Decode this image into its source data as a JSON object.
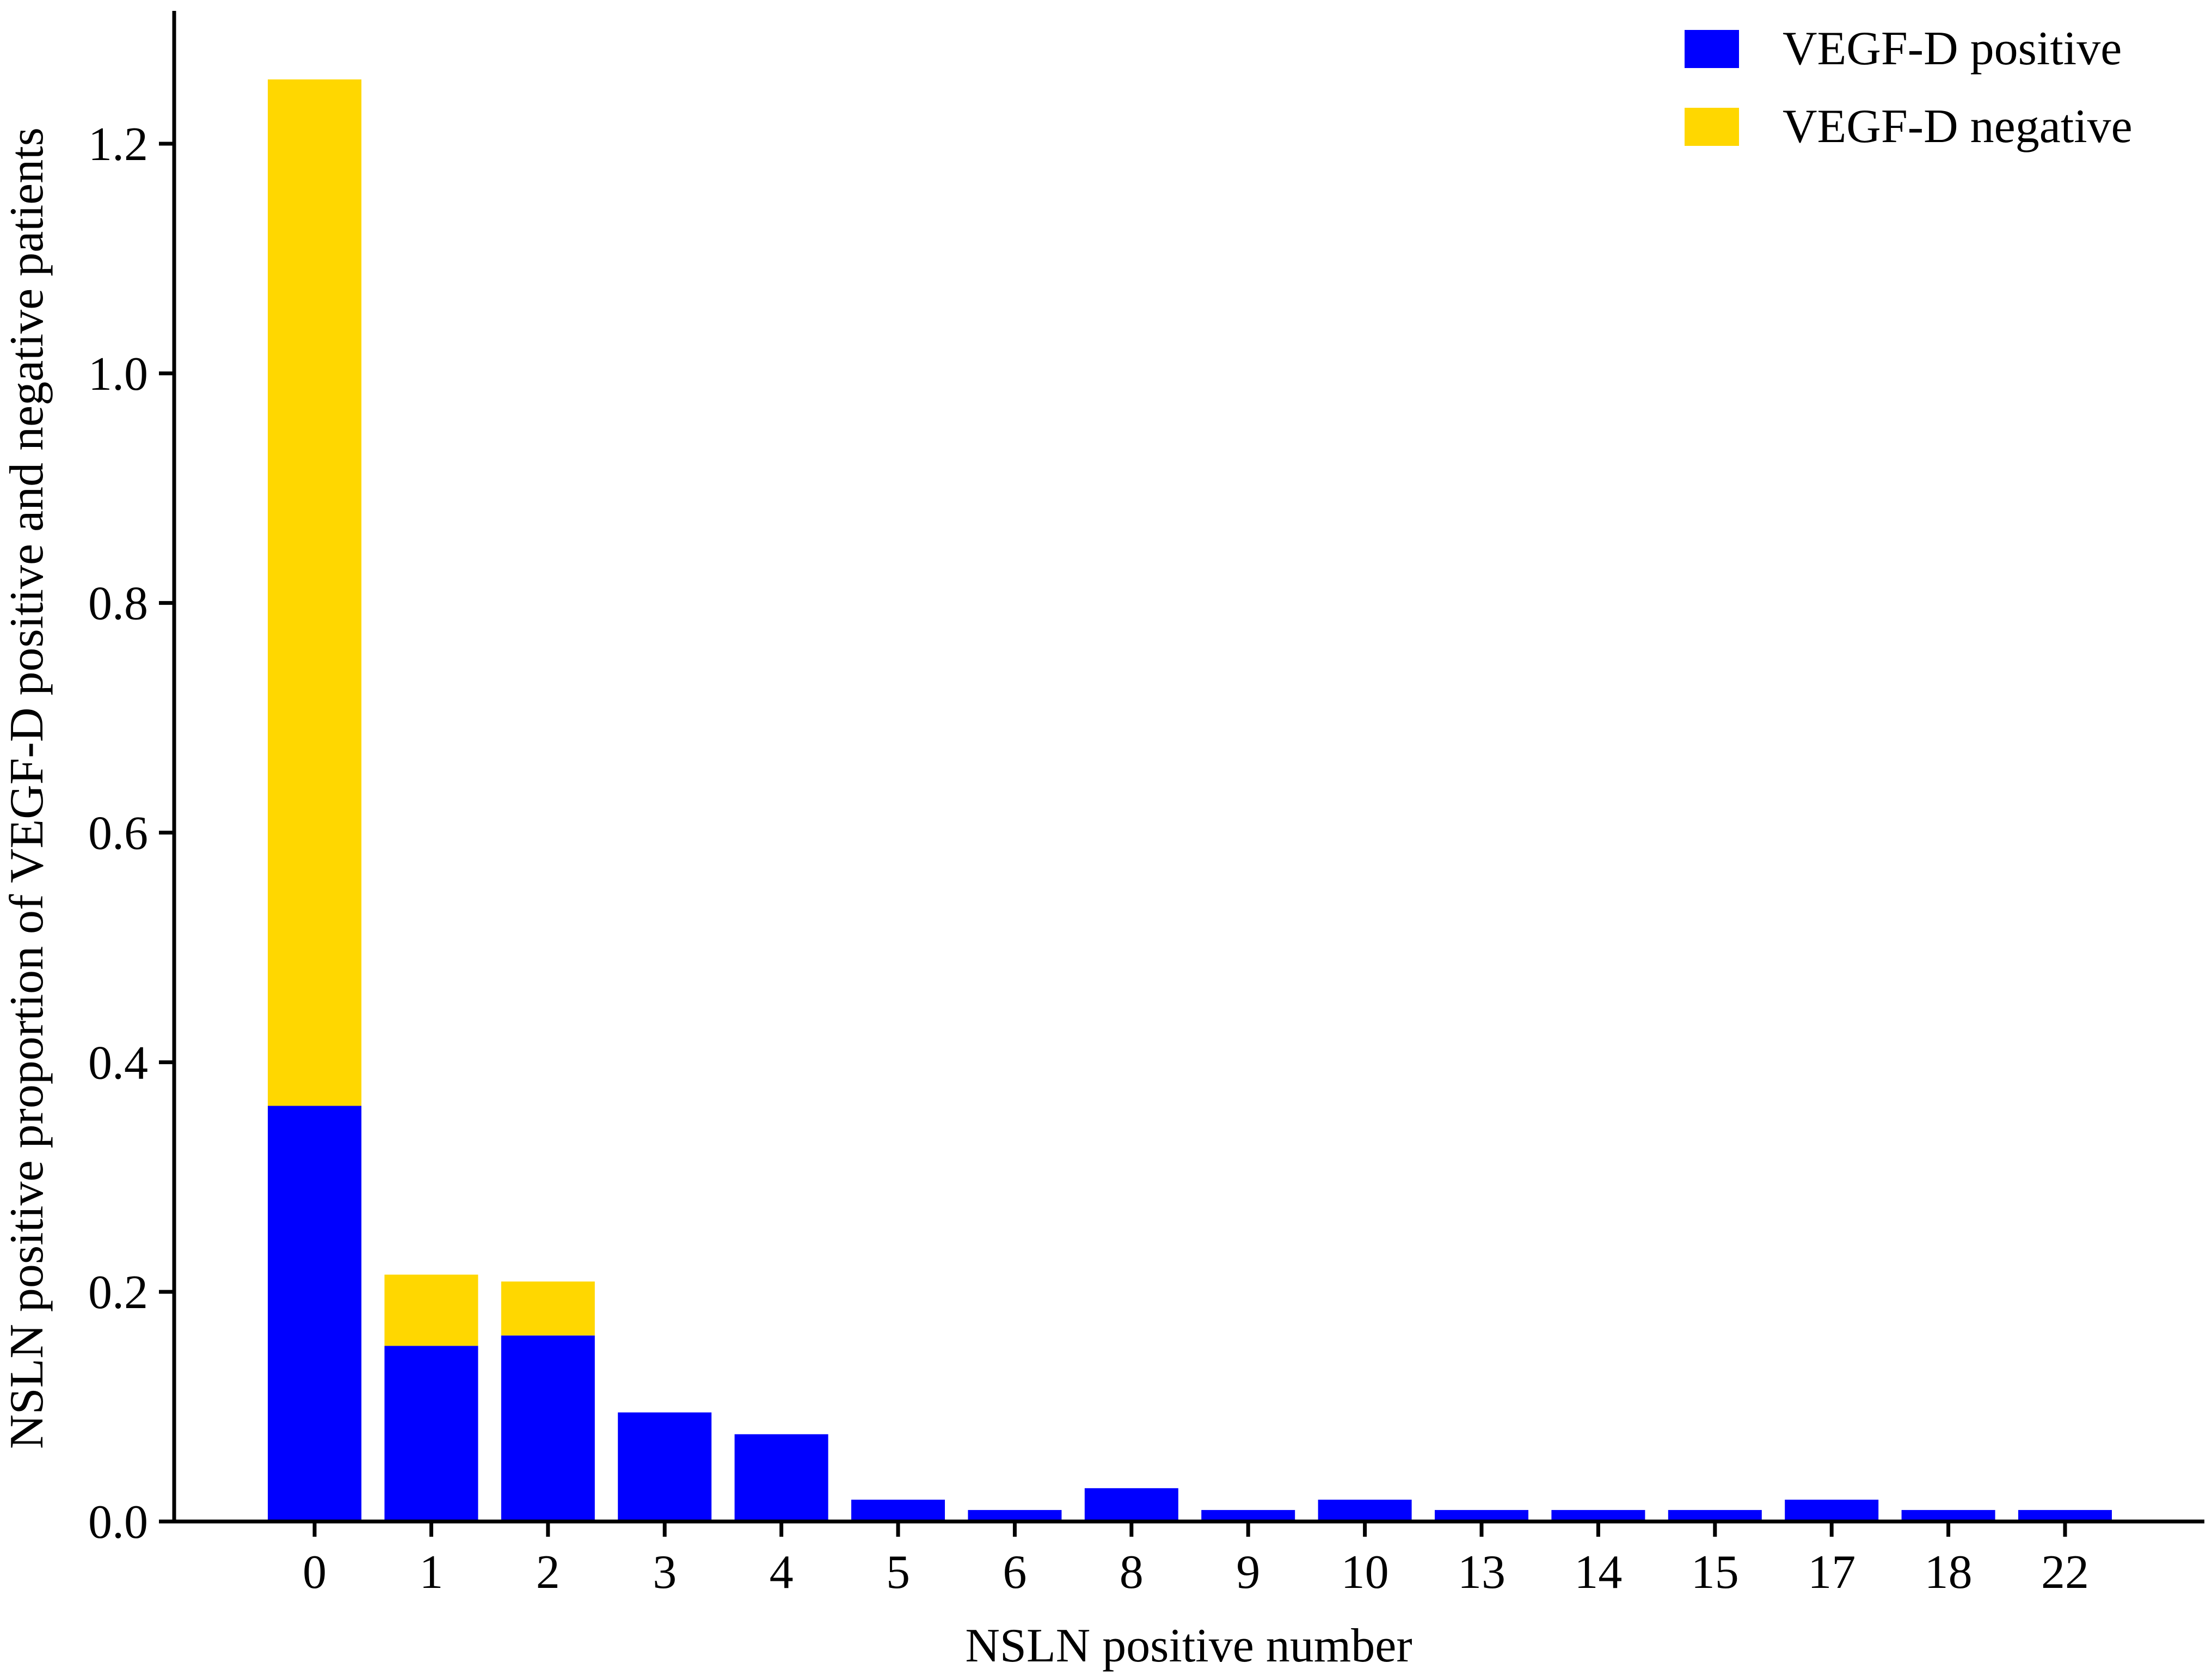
{
  "chart_data": {
    "type": "bar",
    "stacked": true,
    "categories": [
      "0",
      "1",
      "2",
      "3",
      "4",
      "5",
      "6",
      "8",
      "9",
      "10",
      "13",
      "14",
      "15",
      "17",
      "18",
      "22"
    ],
    "series": [
      {
        "name": "VEGF-D positive",
        "color": "#0000ff",
        "values": [
          0.362,
          0.153,
          0.162,
          0.095,
          0.076,
          0.019,
          0.01,
          0.029,
          0.01,
          0.019,
          0.01,
          0.01,
          0.01,
          0.019,
          0.01,
          0.01
        ]
      },
      {
        "name": "VEGF-D negative",
        "color": "#ffd700",
        "values": [
          0.894,
          0.062,
          0.047,
          0,
          0,
          0,
          0,
          0,
          0,
          0,
          0,
          0,
          0,
          0,
          0,
          0
        ]
      }
    ],
    "title": "",
    "xlabel": "NSLN positive number",
    "ylabel": "NSLN positive proportion of VEGF-D positive and negative patients",
    "ylim": [
      0,
      1.3
    ],
    "yticks": [
      0.0,
      0.2,
      0.4,
      0.6,
      0.8,
      1.0,
      1.2
    ],
    "ytick_labels": [
      "0.0",
      "0.2",
      "0.4",
      "0.6",
      "0.8",
      "1.0",
      "1.2"
    ],
    "grid": false,
    "legend_position": "top-right"
  }
}
